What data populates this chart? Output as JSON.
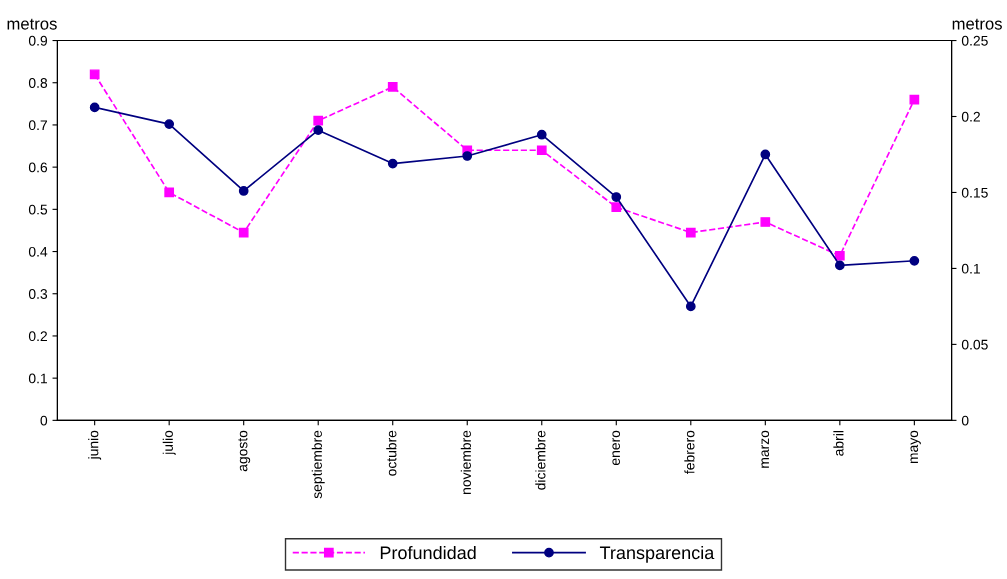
{
  "chart_data": {
    "type": "line",
    "ylabel": "metros",
    "y2label": "metros",
    "categories": [
      "junio",
      "julio",
      "agosto",
      "septiembre",
      "octubre",
      "noviembre",
      "diciembre",
      "enero",
      "febrero",
      "marzo",
      "abril",
      "mayo"
    ],
    "series": [
      {
        "name": "Profundidad",
        "color": "#ff00ff",
        "marker": "square",
        "line_style": "dashed",
        "values": [
          0.82,
          0.54,
          0.445,
          0.71,
          0.79,
          0.64,
          0.64,
          0.505,
          0.445,
          0.47,
          0.39,
          0.76
        ]
      },
      {
        "name": "Transparencia",
        "color": "#000080",
        "marker": "circle",
        "line_style": "solid",
        "axis": "y2",
        "values": [
          0.206,
          0.195,
          0.151,
          0.191,
          0.169,
          0.174,
          0.188,
          0.147,
          0.075,
          0.175,
          0.102,
          0.105
        ]
      }
    ],
    "ylim": [
      0,
      0.9
    ],
    "yticks": [
      0,
      0.1,
      0.2,
      0.3,
      0.4,
      0.5,
      0.6,
      0.7,
      0.8,
      0.9
    ],
    "y2lim": [
      0,
      0.25
    ],
    "y2ticks": [
      0,
      0.05,
      0.1,
      0.15,
      0.2,
      0.25
    ],
    "grid": false,
    "legend": "bottom"
  }
}
